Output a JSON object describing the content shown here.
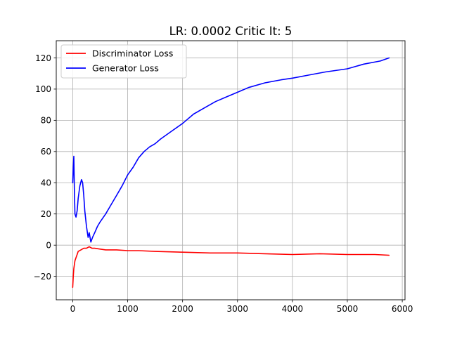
{
  "chart_data": {
    "type": "line",
    "title": "LR: 0.0002 Critic It: 5",
    "xlabel": "",
    "ylabel": "",
    "xlim": [
      -300,
      6050
    ],
    "ylim": [
      -35,
      131
    ],
    "xticks": [
      0,
      1000,
      2000,
      3000,
      4000,
      5000,
      6000
    ],
    "yticks": [
      -20,
      0,
      20,
      40,
      60,
      80,
      100,
      120
    ],
    "grid": true,
    "legend": "top-left",
    "series": [
      {
        "name": "Discriminator Loss",
        "color": "#ff0000",
        "x": [
          0,
          10,
          20,
          40,
          60,
          80,
          100,
          150,
          200,
          250,
          300,
          350,
          400,
          500,
          600,
          700,
          800,
          1000,
          1200,
          1500,
          2000,
          2500,
          3000,
          3500,
          4000,
          4500,
          5000,
          5500,
          5760
        ],
        "y": [
          -27,
          -20,
          -15,
          -10,
          -8,
          -6,
          -4,
          -3,
          -2,
          -2,
          -1,
          -2,
          -2,
          -2.5,
          -3,
          -3,
          -3,
          -3.5,
          -3.5,
          -4,
          -4.5,
          -5,
          -5,
          -5.5,
          -6,
          -5.5,
          -6,
          -6,
          -6.5
        ]
      },
      {
        "name": "Generator Loss",
        "color": "#0000ff",
        "x": [
          0,
          10,
          20,
          30,
          40,
          60,
          80,
          100,
          130,
          160,
          180,
          200,
          220,
          250,
          280,
          300,
          330,
          360,
          400,
          450,
          500,
          600,
          700,
          800,
          900,
          1000,
          1100,
          1200,
          1300,
          1400,
          1500,
          1600,
          1800,
          2000,
          2200,
          2400,
          2600,
          2800,
          3000,
          3200,
          3500,
          3800,
          4000,
          4300,
          4600,
          5000,
          5300,
          5600,
          5760
        ],
        "y": [
          40,
          50,
          57,
          35,
          20,
          18,
          22,
          30,
          38,
          42,
          40,
          32,
          22,
          12,
          5,
          8,
          2,
          5,
          8,
          12,
          15,
          20,
          26,
          32,
          38,
          45,
          50,
          56,
          60,
          63,
          65,
          68,
          73,
          78,
          84,
          88,
          92,
          95,
          98,
          101,
          104,
          106,
          107,
          109,
          111,
          113,
          116,
          118,
          120
        ]
      }
    ]
  }
}
